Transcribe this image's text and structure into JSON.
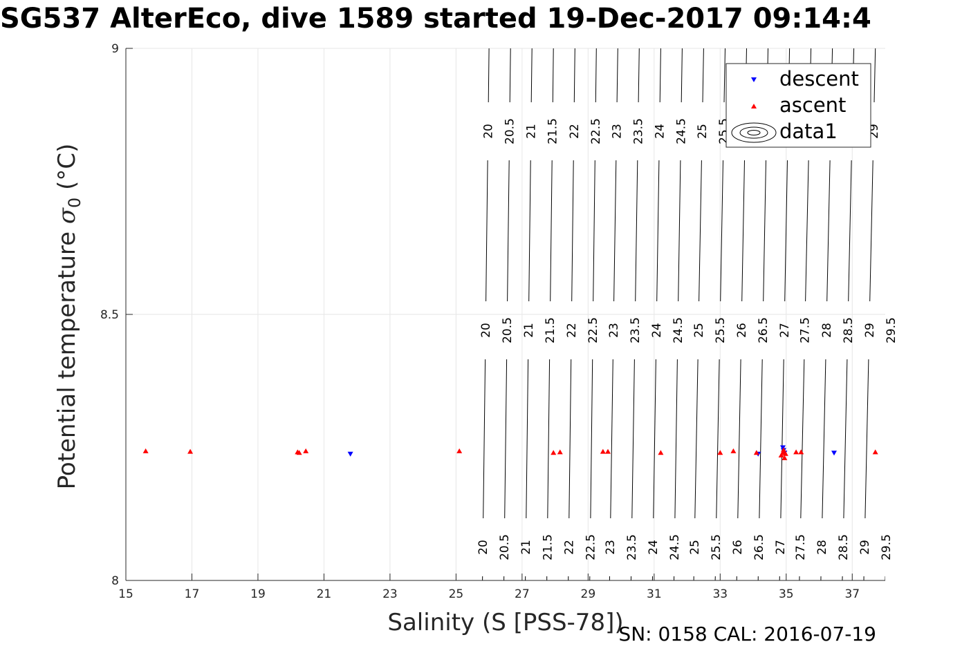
{
  "chart_data": {
    "type": "scatter",
    "title": "SG537 AlterEco, dive 1589 started 19-Dec-2017 09:14:4",
    "xlabel": "Salinity (S [PSS-78])",
    "ylabel_main": "Potential temperature ",
    "ylabel_sigma": "σ",
    "ylabel_sub": "0",
    "ylabel_unit": " (°C)",
    "xlim": [
      15,
      38
    ],
    "ylim": [
      8,
      9
    ],
    "xticks": [
      "15",
      "17",
      "19",
      "21",
      "23",
      "25",
      "27",
      "29",
      "31",
      "33",
      "35",
      "37"
    ],
    "yticks": [
      "8",
      "8.5",
      "9"
    ],
    "grid": true,
    "legend_position": "top-right",
    "legend": [
      "descent",
      "ascent",
      "data1"
    ],
    "series": [
      {
        "name": "descent",
        "color": "#0000ff",
        "marker": "triangle-down",
        "x": [
          21.8,
          34.15,
          34.9,
          34.92,
          34.95,
          36.45
        ],
        "y": [
          8.238,
          8.238,
          8.25,
          8.245,
          8.24,
          8.24
        ]
      },
      {
        "name": "ascent",
        "color": "#ff0000",
        "marker": "triangle-up",
        "x": [
          15.6,
          16.95,
          20.2,
          20.25,
          20.45,
          25.1,
          27.95,
          28.15,
          29.45,
          29.6,
          31.2,
          33.0,
          33.4,
          34.1,
          34.85,
          34.9,
          34.92,
          34.95,
          34.98,
          35.3,
          35.45,
          37.7
        ],
        "y": [
          8.243,
          8.242,
          8.241,
          8.24,
          8.243,
          8.243,
          8.24,
          8.241,
          8.242,
          8.242,
          8.24,
          8.24,
          8.243,
          8.24,
          8.235,
          8.24,
          8.245,
          8.23,
          8.238,
          8.241,
          8.241,
          8.241
        ]
      }
    ],
    "contours": {
      "name": "data1",
      "color": "#000000",
      "levels": [
        "20",
        "20.5",
        "21",
        "21.5",
        "22",
        "22.5",
        "23",
        "23.5",
        "24",
        "24.5",
        "25",
        "25.5",
        "26",
        "26.5",
        "27",
        "27.5",
        "28",
        "28.5",
        "29",
        "29.5"
      ],
      "salinity_at_t8": [
        25.8,
        26.45,
        27.1,
        27.75,
        28.4,
        29.05,
        29.65,
        30.3,
        30.95,
        31.6,
        32.2,
        32.85,
        33.5,
        34.15,
        34.8,
        35.4,
        36.05,
        36.7,
        37.35,
        38.0
      ],
      "salinity_at_t9": [
        26.0,
        26.65,
        27.3,
        27.95,
        28.6,
        29.25,
        29.9,
        30.55,
        31.2,
        31.85,
        32.5,
        33.15,
        33.8,
        34.45,
        35.1,
        35.75,
        36.4,
        37.05,
        37.7,
        38.35
      ]
    },
    "footer": "SN: 0158  CAL: 2016-07-19"
  }
}
